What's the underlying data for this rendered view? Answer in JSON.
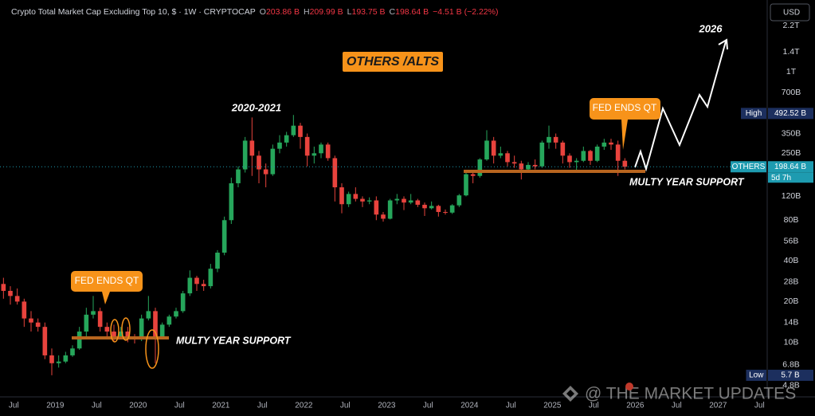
{
  "chart_data": {
    "type": "candlestick",
    "title": "Crypto Total Market Cap Excluding Top 10, $ · 1W · CRYPTOCAP",
    "ohlc_legend": [
      {
        "label": "O",
        "value": "203.86 B"
      },
      {
        "label": "H",
        "value": "209.99 B"
      },
      {
        "label": "L",
        "value": "193.75 B"
      },
      {
        "label": "C",
        "value": "198.64 B"
      },
      {
        "label": "",
        "value": "−4.51 B (−2.22%)"
      }
    ],
    "currency": "USD",
    "x": [
      "2018-05",
      "2018-06",
      "2018-07",
      "2018-08",
      "2018-09",
      "2018-10",
      "2018-11",
      "2018-12",
      "2019-01",
      "2019-02",
      "2019-03",
      "2019-04",
      "2019-05",
      "2019-06",
      "2019-07",
      "2019-08",
      "2019-09",
      "2019-10",
      "2019-11",
      "2019-12",
      "2020-01",
      "2020-02",
      "2020-03",
      "2020-04",
      "2020-05",
      "2020-06",
      "2020-07",
      "2020-08",
      "2020-09",
      "2020-10",
      "2020-11",
      "2020-12",
      "2021-01",
      "2021-02",
      "2021-03",
      "2021-04",
      "2021-05",
      "2021-06",
      "2021-07",
      "2021-08",
      "2021-09",
      "2021-10",
      "2021-11",
      "2021-12",
      "2022-01",
      "2022-02",
      "2022-03",
      "2022-04",
      "2022-05",
      "2022-06",
      "2022-07",
      "2022-08",
      "2022-09",
      "2022-10",
      "2022-11",
      "2022-12",
      "2023-01",
      "2023-02",
      "2023-03",
      "2023-04",
      "2023-05",
      "2023-06",
      "2023-07",
      "2023-08",
      "2023-09",
      "2023-10",
      "2023-11",
      "2023-12",
      "2024-01",
      "2024-02",
      "2024-03",
      "2024-04",
      "2024-05",
      "2024-06",
      "2024-07",
      "2024-08",
      "2024-09",
      "2024-10",
      "2024-11",
      "2024-12",
      "2025-01",
      "2025-02",
      "2025-03",
      "2025-04",
      "2025-05",
      "2025-06",
      "2025-07",
      "2025-08",
      "2025-09",
      "2025-10",
      "2025-11"
    ],
    "open": [
      27,
      24,
      22,
      20,
      15,
      14,
      13,
      8,
      7,
      7.2,
      8,
      9,
      12,
      16,
      17,
      13,
      12,
      11,
      12,
      11,
      10.5,
      15,
      17,
      11,
      13.5,
      15.5,
      17,
      23,
      30,
      27,
      26,
      35,
      46,
      80,
      150,
      190,
      310,
      240,
      190,
      175,
      270,
      300,
      340,
      400,
      330,
      240,
      250,
      290,
      230,
      140,
      105,
      125,
      115,
      110,
      112,
      88,
      82,
      112,
      115,
      108,
      112,
      104,
      98,
      102,
      92,
      91,
      103,
      122,
      175,
      170,
      225,
      310,
      240,
      250,
      215,
      210,
      190,
      205,
      200,
      300,
      330,
      300,
      240,
      215,
      220,
      260,
      220,
      280,
      300,
      290,
      220
    ],
    "high": [
      30,
      26,
      25,
      21,
      17,
      15,
      14,
      9,
      8,
      8.5,
      9.5,
      13,
      18,
      22,
      18,
      14,
      13.5,
      13,
      13,
      11.5,
      16,
      22,
      18,
      14,
      16,
      18,
      24,
      34,
      31,
      29,
      38,
      48,
      85,
      165,
      200,
      330,
      460,
      260,
      210,
      290,
      340,
      360,
      480,
      420,
      350,
      280,
      300,
      300,
      240,
      150,
      130,
      140,
      120,
      118,
      120,
      92,
      115,
      125,
      120,
      125,
      115,
      108,
      110,
      104,
      96,
      105,
      125,
      180,
      185,
      230,
      370,
      330,
      280,
      260,
      240,
      220,
      215,
      225,
      310,
      400,
      350,
      310,
      250,
      230,
      280,
      265,
      290,
      320,
      320,
      310,
      230
    ],
    "low": [
      21,
      19,
      19,
      13,
      12,
      12,
      7.5,
      5.7,
      6.5,
      7,
      7.8,
      8.8,
      11,
      15,
      12,
      11,
      10,
      10.5,
      10,
      9.8,
      10.2,
      14.5,
      7,
      10.5,
      13,
      15,
      16.5,
      22,
      24,
      24,
      25,
      33,
      44,
      75,
      140,
      180,
      170,
      150,
      140,
      170,
      250,
      280,
      330,
      270,
      200,
      210,
      230,
      220,
      110,
      90,
      100,
      110,
      100,
      105,
      80,
      78,
      81,
      105,
      95,
      105,
      100,
      86,
      96,
      85,
      88,
      89,
      100,
      120,
      150,
      165,
      220,
      210,
      230,
      200,
      195,
      160,
      180,
      190,
      195,
      270,
      270,
      210,
      195,
      180,
      215,
      205,
      215,
      265,
      265,
      170,
      190
    ],
    "close": [
      24,
      22,
      20,
      15,
      14,
      13,
      8,
      7,
      7.2,
      8,
      9,
      12,
      16,
      17,
      13,
      12,
      11,
      12,
      11,
      10.5,
      15,
      17,
      11,
      13.5,
      15.5,
      17,
      23,
      30,
      27,
      26,
      35,
      46,
      80,
      150,
      190,
      310,
      240,
      190,
      175,
      270,
      300,
      340,
      400,
      330,
      240,
      250,
      290,
      230,
      140,
      105,
      125,
      115,
      110,
      112,
      88,
      82,
      112,
      115,
      108,
      112,
      104,
      98,
      102,
      92,
      91,
      103,
      122,
      175,
      170,
      225,
      310,
      240,
      250,
      215,
      210,
      190,
      205,
      200,
      300,
      330,
      300,
      240,
      215,
      220,
      260,
      220,
      280,
      300,
      290,
      220,
      198.64
    ],
    "up_color": "#26a65b",
    "down_color": "#e8433d",
    "log_scale": true,
    "grid": false,
    "ylim": [
      4,
      3400
    ],
    "yticks": [
      {
        "value": 2200,
        "label": "2.2T"
      },
      {
        "value": 1400,
        "label": "1.4T"
      },
      {
        "value": 1000,
        "label": "1T"
      },
      {
        "value": 700,
        "label": "700B"
      },
      {
        "value": 350,
        "label": "350B"
      },
      {
        "value": 250,
        "label": "250B"
      },
      {
        "value": 120,
        "label": "120B"
      },
      {
        "value": 80,
        "label": "80B"
      },
      {
        "value": 56,
        "label": "56B"
      },
      {
        "value": 40,
        "label": "40B"
      },
      {
        "value": 28,
        "label": "28B"
      },
      {
        "value": 20,
        "label": "20B"
      },
      {
        "value": 14,
        "label": "14B"
      },
      {
        "value": 10,
        "label": "10B"
      },
      {
        "value": 6.8,
        "label": "6.8B"
      },
      {
        "value": 4.8,
        "label": "4.8B"
      }
    ],
    "xlim": [
      "2018-05",
      "2027-08"
    ],
    "xticks": [
      {
        "value": "2018-07",
        "label": "Jul"
      },
      {
        "value": "2019-01",
        "label": "2019"
      },
      {
        "value": "2019-07",
        "label": "Jul"
      },
      {
        "value": "2020-01",
        "label": "2020"
      },
      {
        "value": "2020-07",
        "label": "Jul"
      },
      {
        "value": "2021-01",
        "label": "2021"
      },
      {
        "value": "2021-07",
        "label": "Jul"
      },
      {
        "value": "2022-01",
        "label": "2022"
      },
      {
        "value": "2022-07",
        "label": "Jul"
      },
      {
        "value": "2023-01",
        "label": "2023"
      },
      {
        "value": "2023-07",
        "label": "Jul"
      },
      {
        "value": "2024-01",
        "label": "2024"
      },
      {
        "value": "2024-07",
        "label": "Jul"
      },
      {
        "value": "2025-01",
        "label": "2025"
      },
      {
        "value": "2025-07",
        "label": "Jul"
      },
      {
        "value": "2026-01",
        "label": "2026"
      },
      {
        "value": "2026-07",
        "label": "Jul"
      },
      {
        "value": "2027-01",
        "label": "2027"
      },
      {
        "value": "2027-07",
        "label": "Jul"
      }
    ],
    "price_markers": [
      {
        "name": "High",
        "value": 492.52,
        "value_label": "492.52 B",
        "color": "#1c2f5e"
      },
      {
        "name": "OTHERS",
        "value": 198.64,
        "value_label": "198.64 B",
        "countdown": "5d 7h",
        "color": "#1e9bb0"
      },
      {
        "name": "Low",
        "value": 5.7,
        "value_label": "5.7 B",
        "color": "#1c2f5e"
      }
    ],
    "annotations": {
      "headline": "OTHERS /ALTS",
      "peak": "2020-2021",
      "target": "2026",
      "fed_1": "FED ENDS QT",
      "fed_2": "FED ENDS QT",
      "support_1": "MULTY YEAR SUPPORT",
      "support_2": "MULTY YEAR SUPPORT"
    },
    "watermark": "@ THE MARKET UPDATES"
  }
}
